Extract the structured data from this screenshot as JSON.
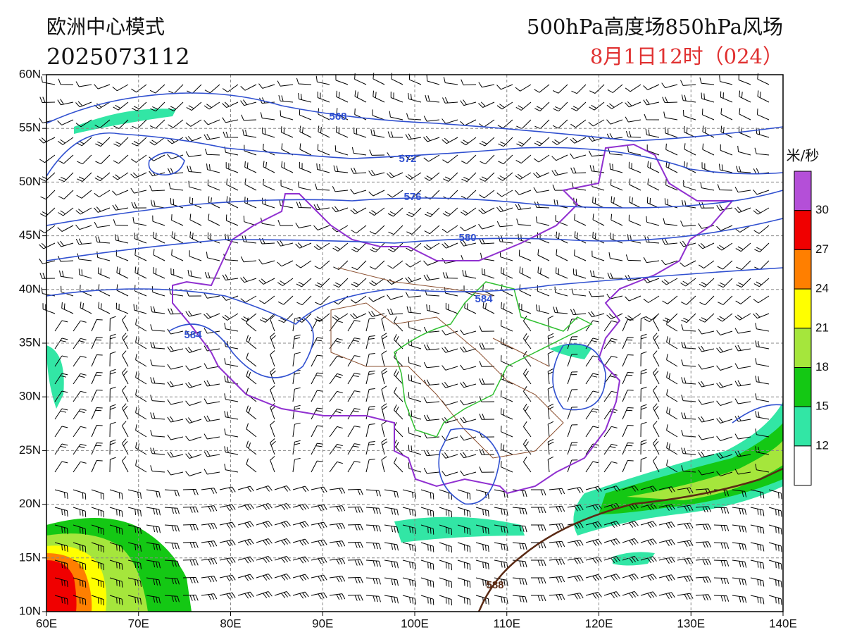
{
  "header": {
    "model": "欧洲中心模式",
    "run": "2025073112",
    "product": "500hPa高度场850hPa风场",
    "valid": "8月1日12时（024）"
  },
  "map": {
    "lat_labels": [
      "60N",
      "55N",
      "50N",
      "45N",
      "40N",
      "35N",
      "30N",
      "25N",
      "20N",
      "15N",
      "10N"
    ],
    "lon_labels": [
      "60E",
      "70E",
      "80E",
      "90E",
      "100E",
      "110E",
      "120E",
      "130E",
      "140E"
    ],
    "contour_labels": [
      "568",
      "572",
      "576",
      "580",
      "584",
      "584",
      "588"
    ]
  },
  "legend": {
    "unit": "米/秒",
    "levels": [
      30,
      27,
      24,
      21,
      18,
      15,
      12
    ],
    "colors": [
      "#b44fd8",
      "#f00000",
      "#ff7f00",
      "#ffff00",
      "#a5e63c",
      "#14c814",
      "#32e6a5",
      "#ffffff"
    ]
  }
}
